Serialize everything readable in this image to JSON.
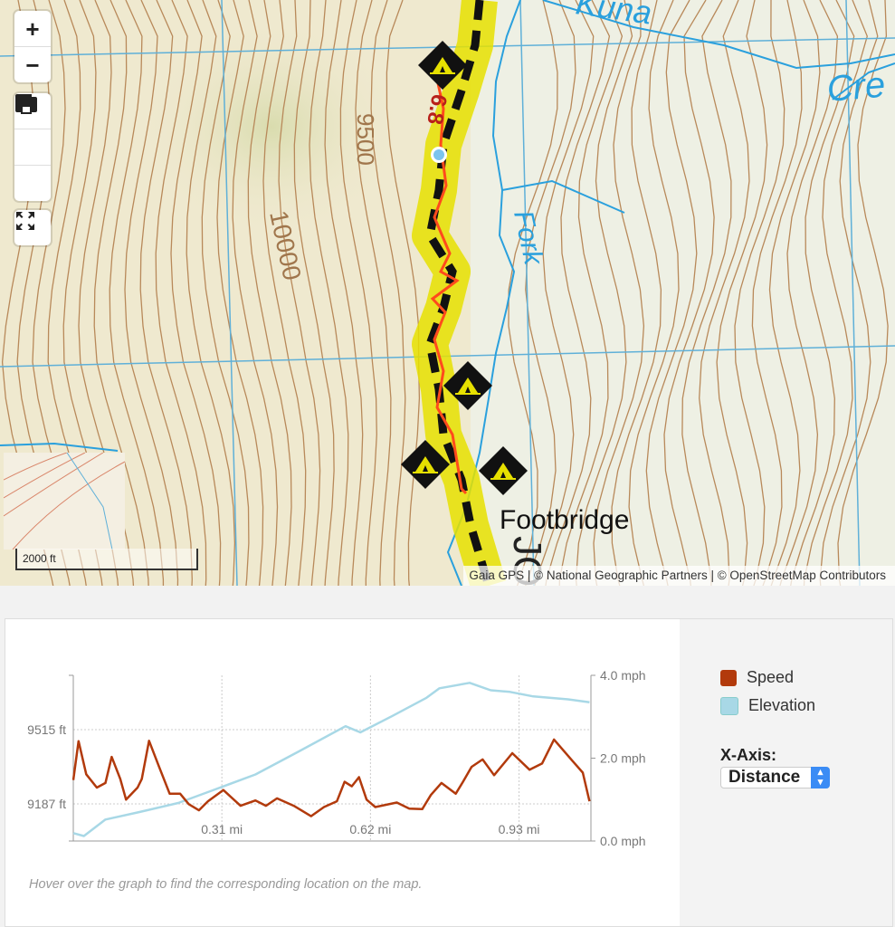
{
  "map": {
    "labels": {
      "kuna": "Kuna",
      "creek": "Cre",
      "fork": "Fork",
      "contour_9500": "9500",
      "contour_10000": "10000",
      "trail_distance": "6.8",
      "footbridge": "Footbridge",
      "trail_name_partial": "JO"
    },
    "controls": {
      "zoom_in": "+",
      "zoom_out": "−",
      "icons": [
        "layers-icon",
        "folder-icon",
        "print-icon",
        "fullscreen-icon"
      ]
    },
    "scale_label": "2000 ft",
    "attribution": "Gaia GPS | © National Geographic Partners | © OpenStreetMap Contributors",
    "colors": {
      "trail_highlight": "#e6e000",
      "track": "#ff4a1c",
      "water": "#2aa0dd",
      "contour": "#b8895a"
    }
  },
  "legend": {
    "items": [
      {
        "label": "Speed",
        "color": "#b23a0c"
      },
      {
        "label": "Elevation",
        "color": "#a8d8e6"
      }
    ],
    "x_axis_label": "X-Axis:",
    "x_axis_value": "Distance"
  },
  "hint": "Hover over the graph to find the corresponding location on the map.",
  "chart_data": {
    "type": "line",
    "xlabel": "",
    "ylabel": "",
    "x_ticks": [
      "0.31 mi",
      "0.62 mi",
      "0.93 mi"
    ],
    "x_tick_values": [
      0.31,
      0.62,
      0.93
    ],
    "xlim": [
      0,
      1.08
    ],
    "y_left_ticks": [
      "9515 ft",
      "9187 ft"
    ],
    "y_left_tick_values": [
      9515,
      9187
    ],
    "y_left_lim": [
      9023,
      9755
    ],
    "y_right_ticks": [
      "4.0 mph",
      "2.0 mph",
      "0.0 mph"
    ],
    "y_right_tick_values": [
      4,
      2,
      0
    ],
    "y_right_lim": [
      0,
      4
    ],
    "grid": true,
    "legend": "right",
    "series": [
      {
        "name": "Speed",
        "axis": "right",
        "color": "#b23a0c",
        "x": [
          0,
          0.011,
          0.027,
          0.049,
          0.067,
          0.08,
          0.098,
          0.11,
          0.134,
          0.143,
          0.158,
          0.179,
          0.201,
          0.223,
          0.241,
          0.262,
          0.281,
          0.313,
          0.349,
          0.38,
          0.402,
          0.425,
          0.46,
          0.496,
          0.523,
          0.55,
          0.566,
          0.581,
          0.596,
          0.612,
          0.63,
          0.675,
          0.701,
          0.728,
          0.746,
          0.768,
          0.798,
          0.813,
          0.831,
          0.854,
          0.878,
          0.916,
          0.952,
          0.978,
          1.003,
          1.041,
          1.063,
          1.077
        ],
        "y": [
          1.47,
          2.41,
          1.61,
          1.29,
          1.4,
          2.03,
          1.5,
          1.0,
          1.29,
          1.5,
          2.42,
          1.79,
          1.14,
          1.14,
          0.89,
          0.74,
          0.96,
          1.23,
          0.85,
          0.98,
          0.85,
          1.03,
          0.85,
          0.6,
          0.82,
          0.96,
          1.43,
          1.32,
          1.54,
          1.0,
          0.82,
          0.93,
          0.78,
          0.77,
          1.11,
          1.4,
          1.14,
          1.43,
          1.79,
          1.97,
          1.59,
          2.12,
          1.72,
          1.87,
          2.45,
          1.94,
          1.65,
          0.96
        ]
      },
      {
        "name": "Elevation",
        "axis": "left",
        "color": "#a8d8e6",
        "x": [
          0,
          0.022,
          0.067,
          0.138,
          0.219,
          0.291,
          0.38,
          0.469,
          0.568,
          0.599,
          0.666,
          0.737,
          0.764,
          0.827,
          0.871,
          0.911,
          0.96,
          1.032,
          1.077
        ],
        "y": [
          9058,
          9045,
          9118,
          9151,
          9191,
          9247,
          9317,
          9417,
          9530,
          9503,
          9576,
          9656,
          9698,
          9722,
          9689,
          9682,
          9662,
          9649,
          9636
        ]
      }
    ]
  }
}
